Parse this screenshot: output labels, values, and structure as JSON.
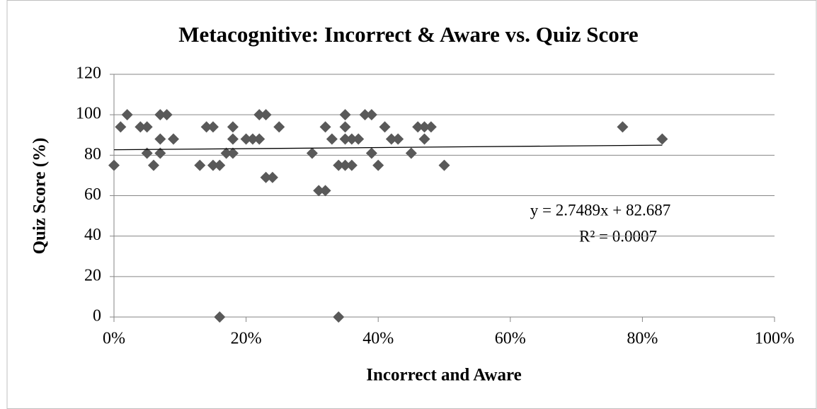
{
  "chart_data": {
    "type": "scatter",
    "title": "Metacognitive: Incorrect & Aware vs. Quiz Score",
    "x_label": "Incorrect and Aware",
    "y_label": "Quiz Score (%)",
    "color": "#595959",
    "grid": true,
    "xlim": [
      0,
      1
    ],
    "xticks": [
      {
        "value": 0,
        "label": "0%"
      },
      {
        "value": 0.2,
        "label": "20%"
      },
      {
        "value": 0.4,
        "label": "40%"
      },
      {
        "value": 0.6,
        "label": "60%"
      },
      {
        "value": 0.8,
        "label": "80%"
      },
      {
        "value": 1,
        "label": "100%"
      }
    ],
    "ylim": [
      0,
      120
    ],
    "yticks": [
      0,
      20,
      40,
      60,
      80,
      100,
      120
    ],
    "x": [
      0,
      0.01,
      0.02,
      0.04,
      0.05,
      0.05,
      0.06,
      0.07,
      0.07,
      0.07,
      0.08,
      0.09,
      0.13,
      0.14,
      0.15,
      0.15,
      0.16,
      0.16,
      0.17,
      0.18,
      0.18,
      0.18,
      0.2,
      0.21,
      0.22,
      0.22,
      0.23,
      0.23,
      0.24,
      0.25,
      0.3,
      0.31,
      0.32,
      0.32,
      0.33,
      0.34,
      0.34,
      0.35,
      0.35,
      0.35,
      0.35,
      0.36,
      0.36,
      0.37,
      0.38,
      0.39,
      0.39,
      0.4,
      0.41,
      0.42,
      0.43,
      0.45,
      0.46,
      0.47,
      0.47,
      0.48,
      0.5,
      0.77,
      0.83
    ],
    "values": [
      75,
      94,
      100,
      94,
      94,
      81,
      75,
      81,
      88,
      100,
      100,
      88,
      75,
      94,
      94,
      75,
      75,
      0,
      81,
      81,
      88,
      94,
      88,
      88,
      88,
      100,
      100,
      69,
      69,
      94,
      81,
      62.5,
      62.5,
      94,
      88,
      75,
      0,
      75,
      88,
      94,
      100,
      75,
      88,
      88,
      100,
      100,
      81,
      75,
      94,
      88,
      88,
      81,
      94,
      88,
      94,
      94,
      75,
      94,
      88
    ],
    "trendline": {
      "equation": "y = 2.7489x + 82.687",
      "r_squared": "R² = 0.0007",
      "slope": 2.7489,
      "intercept": 82.687
    }
  }
}
